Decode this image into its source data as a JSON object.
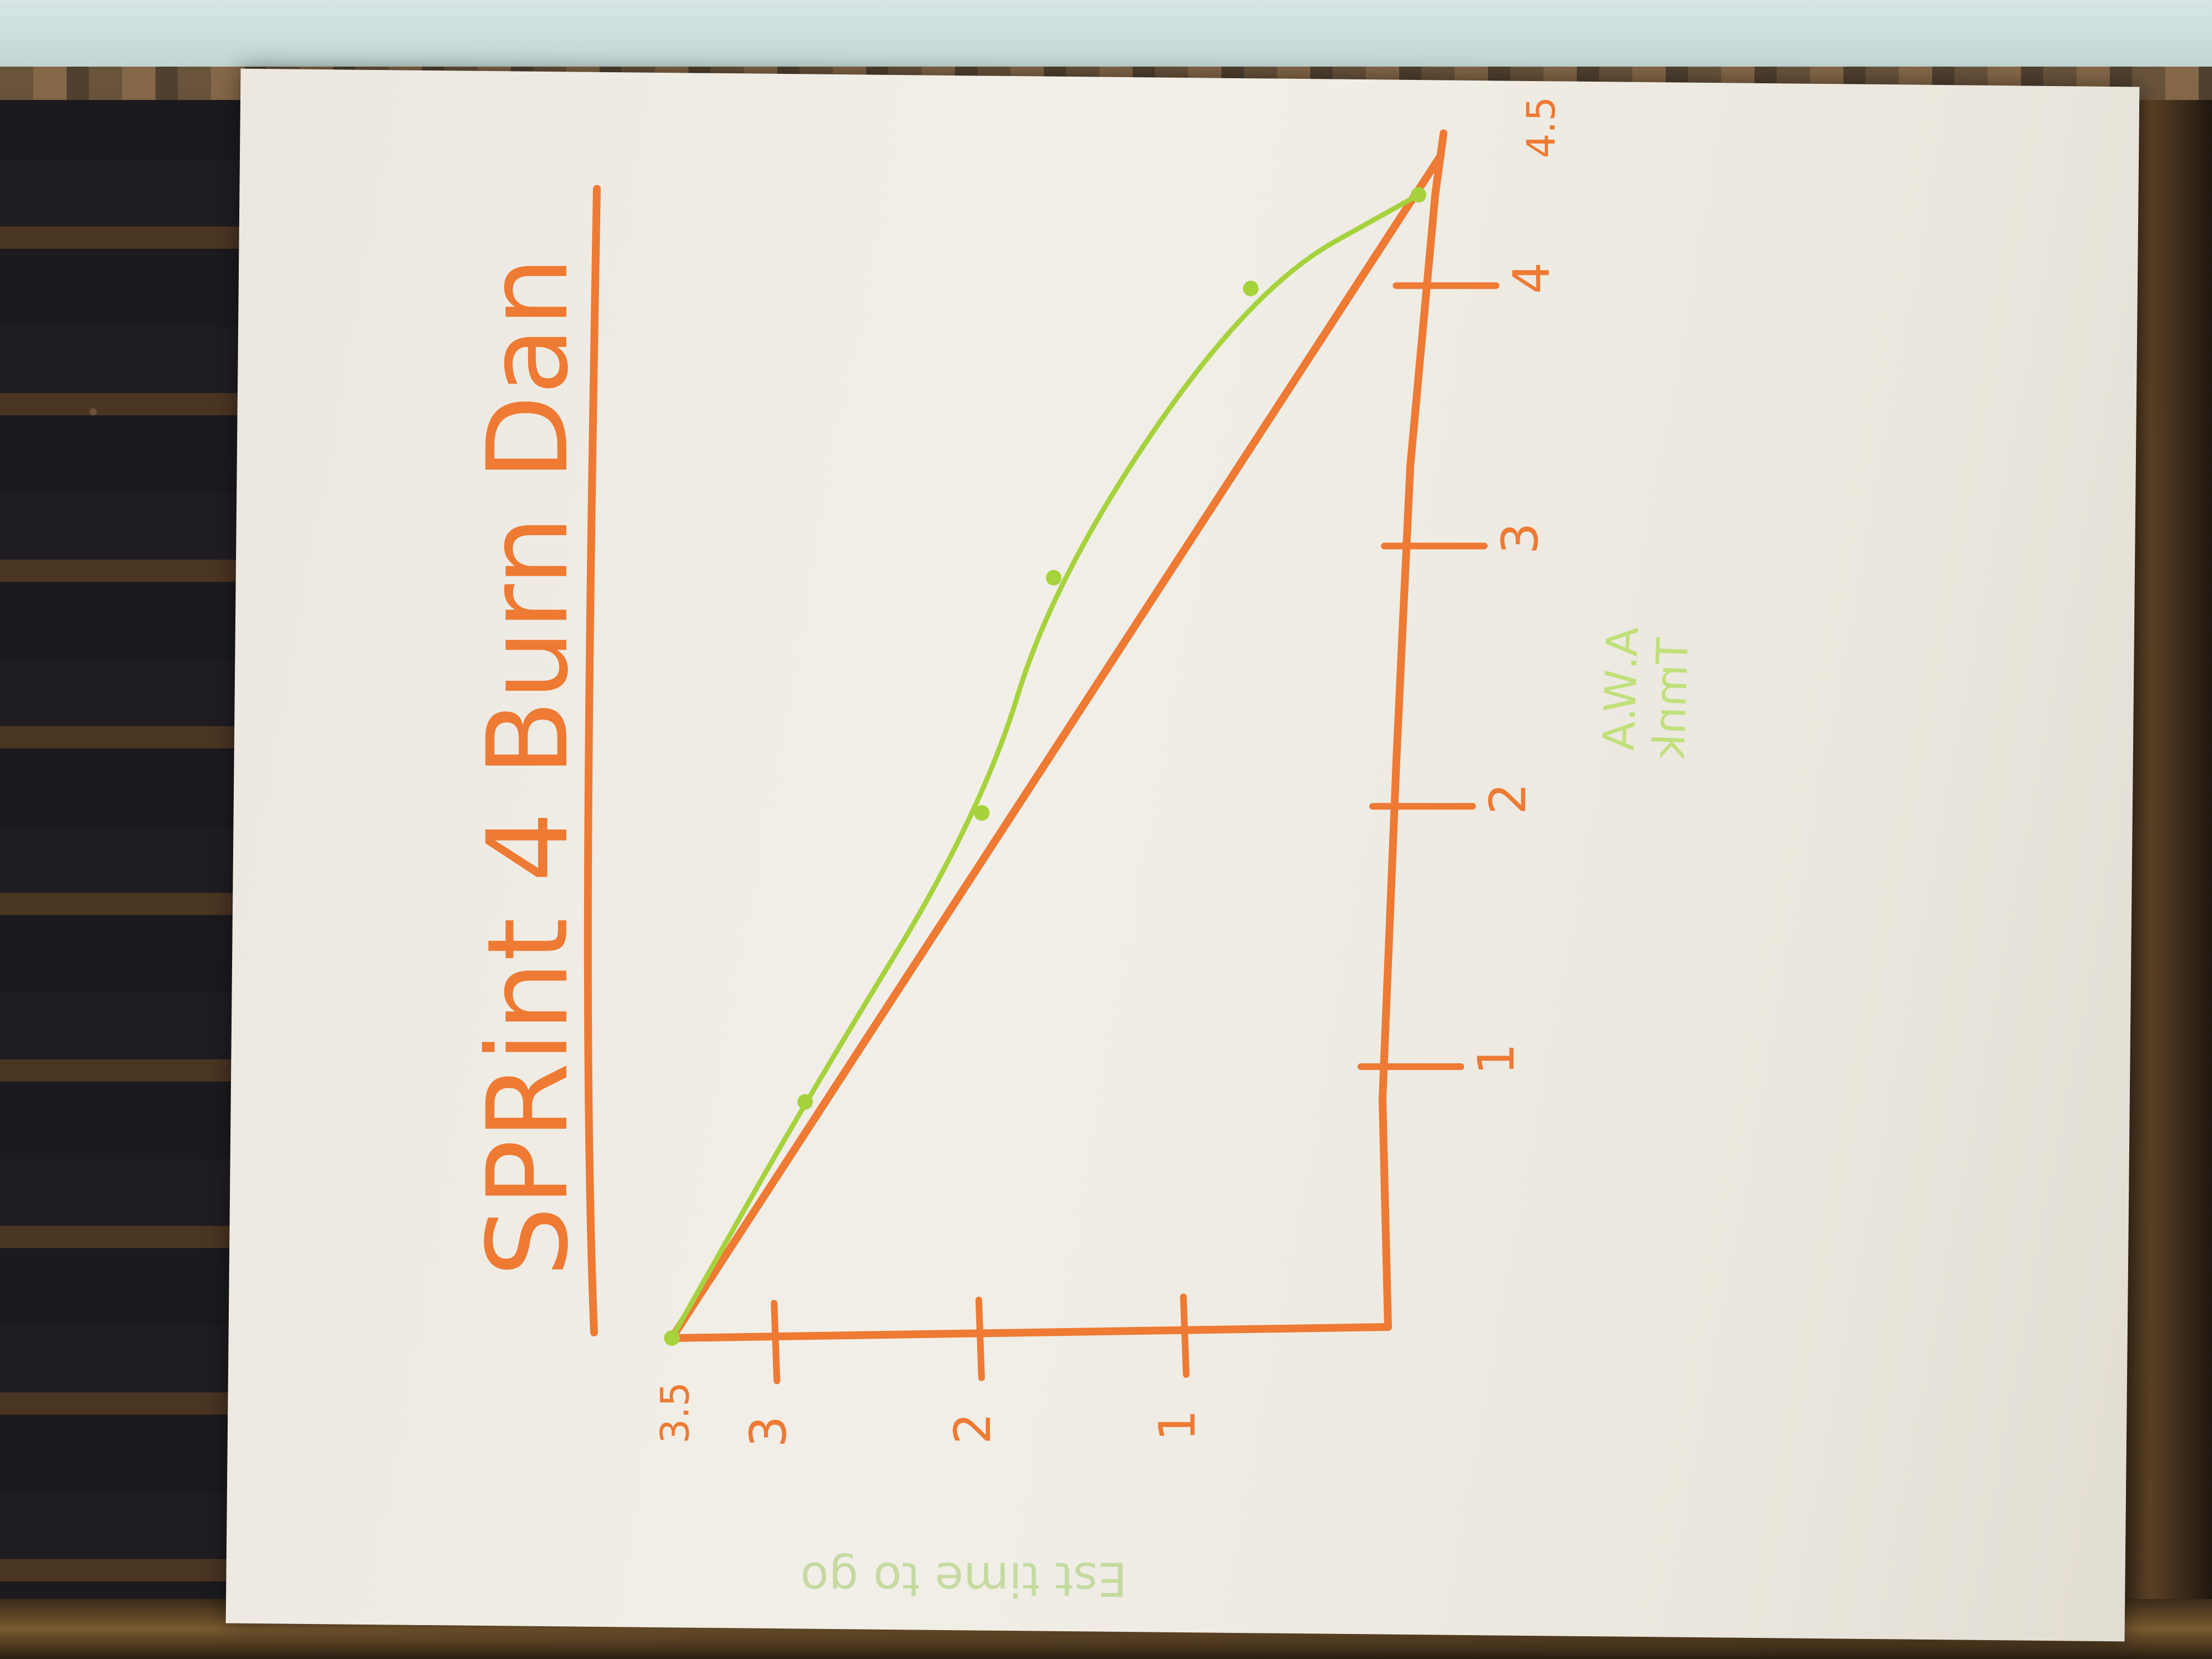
{
  "photo": {
    "subject": "whiteboard paper chart hand-drawn with markers",
    "ink_colors": {
      "chart_ink": "#ee7a33",
      "progress_ink": "#a6d23c",
      "note_ink": "#bfe07a"
    }
  },
  "chart_data": {
    "type": "line",
    "title": "SPRint 4 Burn Dan",
    "x_ticks": [
      "1",
      "2",
      "3",
      "4"
    ],
    "x_end_label": "4.5",
    "y_ticks": [
      "1",
      "2",
      "3"
    ],
    "y_end_label": "3.5",
    "series": [
      {
        "x": [
          0,
          4.5
        ],
        "y": [
          3.5,
          0
        ]
      },
      {
        "x": [
          0,
          0.9,
          2.0,
          2.9,
          4.0,
          4.35
        ],
        "y": [
          3.5,
          2.9,
          2.1,
          1.8,
          0.9,
          0.1
        ]
      }
    ],
    "annotations": [
      "A.W.A",
      "Tmnk",
      "Est time to go"
    ]
  }
}
